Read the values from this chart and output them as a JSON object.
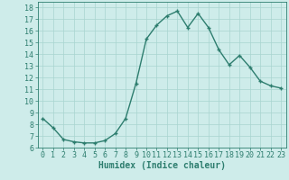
{
  "x": [
    0,
    1,
    2,
    3,
    4,
    5,
    6,
    7,
    8,
    9,
    10,
    11,
    12,
    13,
    14,
    15,
    16,
    17,
    18,
    19,
    20,
    21,
    22,
    23
  ],
  "y": [
    8.5,
    7.7,
    6.7,
    6.5,
    6.4,
    6.4,
    6.6,
    7.2,
    8.5,
    11.5,
    15.3,
    16.5,
    17.3,
    17.7,
    16.3,
    17.5,
    16.3,
    14.4,
    13.1,
    13.9,
    12.9,
    11.7,
    11.3,
    11.1
  ],
  "line_color": "#2d7d6e",
  "marker": "+",
  "marker_size": 3,
  "line_width": 1.0,
  "bg_color": "#ceecea",
  "grid_color": "#a8d4d0",
  "xlabel": "Humidex (Indice chaleur)",
  "xlabel_fontsize": 7,
  "tick_fontsize": 6,
  "xlim": [
    -0.5,
    23.5
  ],
  "ylim": [
    6,
    18.5
  ],
  "yticks": [
    6,
    7,
    8,
    9,
    10,
    11,
    12,
    13,
    14,
    15,
    16,
    17,
    18
  ],
  "xticks": [
    0,
    1,
    2,
    3,
    4,
    5,
    6,
    7,
    8,
    9,
    10,
    11,
    12,
    13,
    14,
    15,
    16,
    17,
    18,
    19,
    20,
    21,
    22,
    23
  ]
}
